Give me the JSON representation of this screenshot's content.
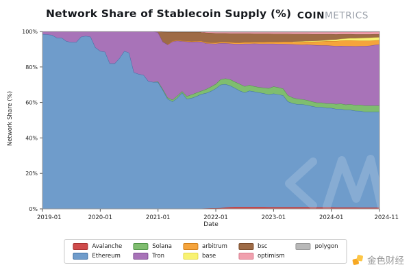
{
  "title": "Network Share of Stablecoin Supply (%)",
  "logo": {
    "bold": "COIN",
    "light": "METRICS"
  },
  "watermark": {
    "text": "CM"
  },
  "footer_brand": {
    "text": "金色财经"
  },
  "chart_data": {
    "type": "area",
    "stacked": true,
    "normalized": "percent",
    "title": "Network Share of Stablecoin Supply (%)",
    "xlabel": "Date",
    "ylabel": "Network Share (%)",
    "ylim": [
      0,
      100
    ],
    "x_start": "2019-01",
    "x_end": "2024-11",
    "x_unit": "month",
    "x_ticks": [
      "2019-01",
      "2020-01",
      "2021-01",
      "2022-01",
      "2023-01",
      "2024-01",
      "2024-11"
    ],
    "x_tick_months": [
      0,
      12,
      24,
      36,
      48,
      60,
      70
    ],
    "y_ticks": [
      "0%",
      "20%",
      "40%",
      "60%",
      "80%",
      "100%"
    ],
    "y_tick_values": [
      0,
      20,
      40,
      60,
      80,
      100
    ],
    "legend_position": "bottom",
    "stack_order": [
      "Avalanche",
      "Ethereum",
      "Solana",
      "Tron",
      "arbitrum",
      "base",
      "bsc",
      "optimism",
      "polygon"
    ],
    "series": [
      {
        "name": "Avalanche",
        "color": "#cf4b4b",
        "edge": "#a83232",
        "values": [
          0,
          0,
          0,
          0,
          0,
          0,
          0,
          0,
          0,
          0,
          0,
          0,
          0,
          0,
          0,
          0,
          0,
          0,
          0,
          0,
          0,
          0,
          0,
          0,
          0,
          0,
          0,
          0,
          0,
          0,
          0,
          0,
          0,
          0.2,
          0.3,
          0.4,
          0.4,
          0.5,
          0.8,
          1.0,
          1.1,
          1.1,
          1.1,
          1.1,
          1.1,
          1.1,
          1.1,
          1.0,
          1.0,
          1.0,
          1.0,
          1.0,
          1.0,
          1.0,
          1.0,
          1.0,
          0.9,
          0.9,
          0.9,
          0.9,
          0.9,
          0.8,
          0.8,
          0.8,
          0.8,
          0.8,
          0.7,
          0.7,
          0.7,
          0.7,
          0.7
        ]
      },
      {
        "name": "Ethereum",
        "color": "#6f9ccb",
        "edge": "#3f6fa3",
        "values": [
          98.5,
          98.3,
          98.0,
          96.5,
          96.5,
          94.5,
          94.0,
          94.0,
          97.0,
          97.5,
          97.0,
          91.0,
          89.0,
          88.5,
          82.0,
          82.0,
          85.0,
          89.0,
          88.0,
          77.0,
          76.0,
          75.5,
          72.0,
          71.5,
          71.5,
          67.0,
          62.0,
          60.5,
          62.5,
          65.5,
          62.0,
          62.5,
          63.5,
          64.5,
          65.0,
          66.0,
          67.5,
          69.5,
          69.5,
          68.5,
          67.0,
          65.5,
          64.5,
          65.5,
          65.0,
          64.5,
          64.0,
          63.5,
          64.0,
          63.5,
          63.0,
          59.5,
          58.5,
          58.0,
          58.0,
          57.5,
          57.0,
          56.5,
          56.5,
          56.0,
          56.0,
          55.5,
          55.5,
          55.0,
          55.0,
          54.5,
          54.5,
          54.0,
          54.0,
          54.0,
          54.0
        ]
      },
      {
        "name": "Solana",
        "color": "#7fbd6f",
        "edge": "#4f9347",
        "values": [
          0,
          0,
          0,
          0,
          0,
          0,
          0,
          0,
          0,
          0,
          0,
          0,
          0,
          0,
          0,
          0,
          0,
          0,
          0,
          0,
          0,
          0,
          0,
          0,
          0.3,
          0.5,
          0.8,
          1.0,
          1.2,
          0.8,
          1.5,
          2.0,
          2.0,
          1.8,
          2.2,
          2.5,
          2.5,
          3.0,
          3.2,
          3.5,
          3.5,
          3.8,
          3.5,
          3.2,
          3.0,
          3.0,
          3.2,
          3.5,
          4.0,
          4.0,
          3.8,
          3.5,
          3.2,
          3.0,
          2.8,
          2.8,
          2.6,
          2.5,
          2.5,
          2.5,
          2.5,
          2.8,
          3.0,
          3.0,
          3.2,
          3.2,
          3.5,
          3.5,
          3.5,
          3.5,
          3.5
        ]
      },
      {
        "name": "Tron",
        "color": "#a873b8",
        "edge": "#7e4f92",
        "values": [
          1.5,
          1.7,
          2.0,
          3.5,
          3.5,
          5.5,
          6.0,
          6.0,
          3.0,
          2.5,
          3.0,
          9.0,
          11.0,
          11.5,
          18.0,
          18.0,
          15.0,
          11.0,
          12.0,
          23.0,
          24.0,
          24.5,
          28.0,
          28.5,
          27.7,
          26.7,
          29.8,
          32.8,
          31.1,
          28.2,
          30.8,
          29.6,
          28.8,
          27.7,
          25.8,
          24.3,
          22.7,
          20.4,
          19.9,
          20.2,
          21.4,
          22.6,
          24.0,
          23.3,
          24.1,
          24.5,
          24.8,
          25.1,
          24.1,
          24.5,
          25.2,
          28.9,
          30.1,
          30.6,
          30.7,
          31.3,
          31.9,
          32.4,
          32.3,
          32.8,
          32.6,
          32.7,
          32.6,
          33.0,
          32.8,
          33.2,
          33.1,
          33.6,
          33.8,
          34.2,
          34.5
        ]
      },
      {
        "name": "arbitrum",
        "color": "#f5a43c",
        "edge": "#d07f1a",
        "values": [
          0,
          0,
          0,
          0,
          0,
          0,
          0,
          0,
          0,
          0,
          0,
          0,
          0,
          0,
          0,
          0,
          0,
          0,
          0,
          0,
          0,
          0,
          0,
          0,
          0,
          0,
          0,
          0.3,
          0.3,
          0.3,
          0.3,
          0.3,
          0.3,
          0.4,
          0.5,
          0.5,
          0.6,
          0.6,
          0.6,
          0.7,
          0.7,
          0.7,
          0.8,
          0.8,
          0.8,
          0.9,
          0.9,
          1.0,
          1.0,
          1.1,
          1.2,
          1.3,
          1.4,
          1.5,
          1.6,
          1.7,
          1.8,
          2.0,
          2.2,
          2.4,
          2.6,
          2.8,
          3.0,
          3.2,
          3.2,
          3.2,
          3.0,
          3.0,
          2.8,
          2.6,
          2.5
        ]
      },
      {
        "name": "base",
        "color": "#f8f272",
        "edge": "#e3d94f",
        "values": [
          0,
          0,
          0,
          0,
          0,
          0,
          0,
          0,
          0,
          0,
          0,
          0,
          0,
          0,
          0,
          0,
          0,
          0,
          0,
          0,
          0,
          0,
          0,
          0,
          0,
          0,
          0,
          0,
          0,
          0,
          0,
          0,
          0,
          0,
          0,
          0,
          0,
          0,
          0,
          0,
          0,
          0,
          0,
          0,
          0,
          0,
          0,
          0,
          0,
          0,
          0,
          0,
          0,
          0.2,
          0.3,
          0.3,
          0.4,
          0.4,
          0.5,
          0.5,
          0.7,
          0.8,
          0.9,
          1.0,
          1.2,
          1.3,
          1.5,
          1.6,
          1.7,
          1.6,
          1.5
        ]
      },
      {
        "name": "bsc",
        "color": "#9e6b46",
        "edge": "#7a4c2c",
        "values": [
          0,
          0,
          0,
          0,
          0,
          0,
          0,
          0,
          0,
          0,
          0,
          0,
          0,
          0,
          0,
          0,
          0,
          0,
          0,
          0,
          0,
          0,
          0,
          0,
          0.5,
          5.5,
          7.0,
          5.0,
          4.5,
          4.8,
          5.0,
          5.2,
          5.0,
          5.0,
          5.5,
          5.5,
          5.3,
          5.0,
          5.0,
          5.0,
          5.2,
          5.2,
          5.0,
          5.0,
          4.8,
          4.8,
          4.8,
          4.7,
          4.6,
          4.6,
          4.5,
          4.5,
          4.4,
          4.3,
          4.2,
          4.0,
          3.9,
          3.8,
          3.6,
          3.4,
          3.2,
          3.0,
          2.7,
          2.5,
          2.3,
          2.2,
          2.1,
          2.0,
          1.9,
          1.9,
          1.8
        ]
      },
      {
        "name": "optimism",
        "color": "#f0a0ae",
        "edge": "#d87f90",
        "values": [
          0,
          0,
          0,
          0,
          0,
          0,
          0,
          0,
          0,
          0,
          0,
          0,
          0,
          0,
          0,
          0,
          0,
          0,
          0,
          0,
          0,
          0,
          0,
          0,
          0,
          0,
          0,
          0,
          0,
          0,
          0,
          0,
          0,
          0,
          0.3,
          0.4,
          0.5,
          0.5,
          0.5,
          0.6,
          0.6,
          0.6,
          0.6,
          0.6,
          0.7,
          0.7,
          0.7,
          0.7,
          0.8,
          0.8,
          0.8,
          0.8,
          0.9,
          0.9,
          0.9,
          0.9,
          1.0,
          1.0,
          1.0,
          1.0,
          1.0,
          1.1,
          1.1,
          1.1,
          1.1,
          1.2,
          1.2,
          1.2,
          1.2,
          1.2,
          1.2
        ]
      },
      {
        "name": "polygon",
        "color": "#b8b8b8",
        "edge": "#979797",
        "values": [
          0,
          0,
          0,
          0,
          0,
          0,
          0,
          0,
          0,
          0,
          0,
          0,
          0,
          0,
          0,
          0,
          0,
          0,
          0,
          0,
          0,
          0,
          0,
          0,
          0,
          0.3,
          0.4,
          0.4,
          0.4,
          0.4,
          0.4,
          0.4,
          0.4,
          0.4,
          0.4,
          0.4,
          0.5,
          0.5,
          0.5,
          0.5,
          0.5,
          0.5,
          0.5,
          0.5,
          0.5,
          0.5,
          0.5,
          0.5,
          0.5,
          0.5,
          0.5,
          0.5,
          0.5,
          0.5,
          0.5,
          0.5,
          0.5,
          0.5,
          0.5,
          0.5,
          0.5,
          0.5,
          0.4,
          0.4,
          0.4,
          0.4,
          0.4,
          0.4,
          0.4,
          0.3,
          0.3
        ]
      }
    ]
  },
  "legend": {
    "columns": [
      [
        "Avalanche",
        "Ethereum"
      ],
      [
        "Solana",
        "Tron"
      ],
      [
        "arbitrum",
        "base"
      ],
      [
        "bsc",
        "optimism"
      ],
      [
        "polygon"
      ]
    ]
  }
}
